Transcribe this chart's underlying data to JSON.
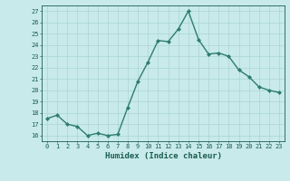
{
  "x": [
    0,
    1,
    2,
    3,
    4,
    5,
    6,
    7,
    8,
    9,
    10,
    11,
    12,
    13,
    14,
    15,
    16,
    17,
    18,
    19,
    20,
    21,
    22,
    23
  ],
  "y": [
    17.5,
    17.8,
    17.0,
    16.8,
    16.0,
    16.2,
    16.0,
    16.1,
    18.5,
    20.8,
    22.5,
    24.4,
    24.3,
    25.4,
    27.0,
    24.5,
    23.2,
    23.3,
    23.0,
    21.8,
    21.2,
    20.3,
    20.0,
    19.8
  ],
  "line_color": "#2e7d6e",
  "marker": "D",
  "markersize": 2.0,
  "linewidth": 1.0,
  "xlabel": "Humidex (Indice chaleur)",
  "xlim": [
    -0.5,
    23.5
  ],
  "ylim": [
    15.5,
    27.5
  ],
  "yticks": [
    16,
    17,
    18,
    19,
    20,
    21,
    22,
    23,
    24,
    25,
    26,
    27
  ],
  "xticks": [
    0,
    1,
    2,
    3,
    4,
    5,
    6,
    7,
    8,
    9,
    10,
    11,
    12,
    13,
    14,
    15,
    16,
    17,
    18,
    19,
    20,
    21,
    22,
    23
  ],
  "bg_color": "#c8eaea",
  "grid_color": "#aad4d4",
  "line_dark": "#1a5c50",
  "xlabel_fontsize": 6.5,
  "tick_fontsize": 5.0,
  "label_color": "#1a5c50"
}
